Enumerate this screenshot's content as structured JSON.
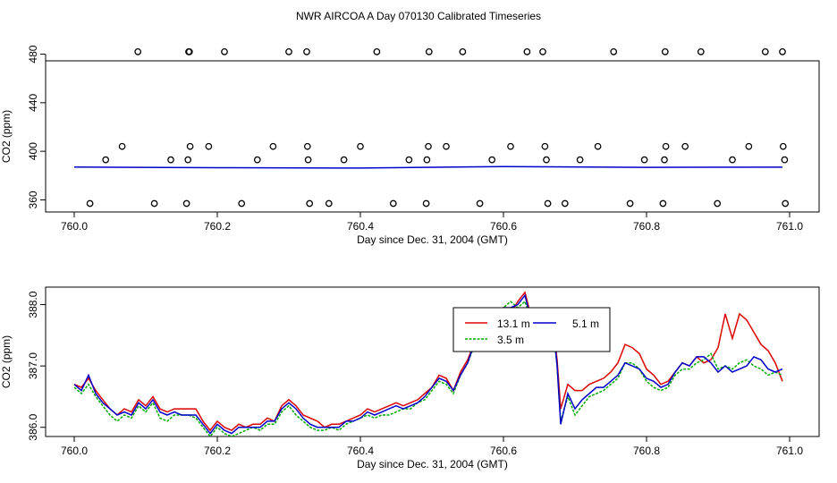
{
  "title": "NWR AIRCOA A  Day 070130  Calibrated Timeseries",
  "chart_data": [
    {
      "type": "scatter",
      "xlabel": "Day since Dec. 31, 2004 (GMT)",
      "ylabel": "CO2 (ppm)",
      "xlim": [
        760.0,
        761.0
      ],
      "ylim": [
        350,
        490
      ],
      "xticks": [
        "760.0",
        "760.2",
        "760.4",
        "760.6",
        "760.8",
        "761.0"
      ],
      "xtick_values": [
        760.0,
        760.2,
        760.4,
        760.6,
        760.8,
        761.0
      ],
      "yticks": [
        "360",
        "400",
        "440",
        "480"
      ],
      "ytick_values": [
        360,
        400,
        440,
        480
      ],
      "grid": false,
      "series": [
        {
          "marker": "open-circle",
          "color": "#000000",
          "x": [
            760.022,
            760.089,
            760.16,
            760.161,
            760.21,
            760.3,
            760.325,
            760.423,
            760.496,
            760.543,
            760.633,
            760.655,
            760.754,
            760.826,
            760.876,
            760.966,
            760.99,
            760.067,
            760.162,
            760.188,
            760.278,
            760.326,
            760.4,
            760.495,
            760.52,
            760.61,
            760.658,
            760.732,
            760.827,
            760.854,
            760.943,
            760.991,
            760.044,
            760.135,
            760.159,
            760.256,
            760.327,
            760.377,
            760.468,
            760.493,
            760.584,
            760.66,
            760.707,
            760.797,
            760.825,
            760.92,
            760.993,
            760.112,
            760.157,
            760.234,
            760.329,
            760.356,
            760.446,
            760.492,
            760.567,
            760.662,
            760.686,
            760.777,
            760.823,
            760.899,
            760.994
          ],
          "y": [
            357,
            482,
            482,
            482,
            482,
            482,
            482,
            482,
            482,
            482,
            482,
            482,
            482,
            482,
            482,
            482,
            482,
            404,
            404,
            404,
            404,
            404,
            404,
            404,
            404,
            404,
            404,
            404,
            404,
            404,
            404,
            404,
            393,
            393,
            393,
            393,
            393,
            393,
            393,
            393,
            393,
            393,
            393,
            393,
            393,
            393,
            393,
            357,
            357,
            357,
            357,
            357,
            357,
            357,
            357,
            357,
            357,
            357,
            357,
            357,
            357
          ]
        },
        {
          "marker": "line",
          "color": "#0000cc",
          "x": [
            760.0,
            760.2,
            760.4,
            760.6,
            760.8,
            760.99
          ],
          "y": [
            387,
            386.5,
            386.2,
            387.4,
            386.8,
            386.9
          ]
        }
      ]
    },
    {
      "type": "line",
      "xlabel": "Day since Dec. 31, 2004 (GMT)",
      "ylabel": "CO2 (ppm)",
      "xlim": [
        760.0,
        761.0
      ],
      "ylim": [
        385.85,
        388.3
      ],
      "xticks": [
        "760.0",
        "760.2",
        "760.4",
        "760.6",
        "760.8",
        "761.0"
      ],
      "xtick_values": [
        760.0,
        760.2,
        760.4,
        760.6,
        760.8,
        761.0
      ],
      "yticks": [
        "386.0",
        "387.0",
        "388.0"
      ],
      "ytick_values": [
        386.0,
        387.0,
        388.0
      ],
      "grid": false,
      "legend": "top-center",
      "series": [
        {
          "name": "13.1 m",
          "label_shown": "13.1 m",
          "color": "#dd0000",
          "x": [
            760.0,
            760.01,
            760.02,
            760.03,
            760.04,
            760.05,
            760.06,
            760.07,
            760.08,
            760.09,
            760.1,
            760.11,
            760.12,
            760.13,
            760.14,
            760.15,
            760.16,
            760.17,
            760.18,
            760.19,
            760.2,
            760.21,
            760.22,
            760.23,
            760.24,
            760.25,
            760.26,
            760.27,
            760.28,
            760.29,
            760.3,
            760.31,
            760.32,
            760.33,
            760.34,
            760.35,
            760.36,
            760.37,
            760.38,
            760.39,
            760.4,
            760.41,
            760.42,
            760.43,
            760.44,
            760.45,
            760.46,
            760.47,
            760.48,
            760.49,
            760.5,
            760.51,
            760.52,
            760.53,
            760.54,
            760.55,
            760.56,
            760.57,
            760.58,
            760.59,
            760.6,
            760.61,
            760.62,
            760.63,
            760.64,
            760.65,
            760.66,
            760.67,
            760.675,
            760.68,
            760.69,
            760.7,
            760.71,
            760.72,
            760.73,
            760.74,
            760.75,
            760.76,
            760.77,
            760.78,
            760.79,
            760.8,
            760.81,
            760.82,
            760.83,
            760.84,
            760.85,
            760.86,
            760.87,
            760.88,
            760.89,
            760.9,
            760.91,
            760.92,
            760.93,
            760.94,
            760.95,
            760.96,
            760.97,
            760.98,
            760.99
          ],
          "y": [
            386.7,
            386.65,
            386.8,
            386.6,
            386.45,
            386.3,
            386.2,
            386.3,
            386.25,
            386.45,
            386.35,
            386.5,
            386.3,
            386.25,
            386.3,
            386.3,
            386.3,
            386.3,
            386.1,
            385.95,
            386.1,
            386.0,
            385.95,
            386.05,
            386.0,
            386.05,
            386.05,
            386.15,
            386.1,
            386.35,
            386.45,
            386.35,
            386.2,
            386.15,
            386.1,
            386.0,
            386.05,
            386.05,
            386.1,
            386.15,
            386.2,
            386.3,
            386.25,
            386.3,
            386.35,
            386.4,
            386.35,
            386.4,
            386.45,
            386.55,
            386.65,
            386.85,
            386.8,
            386.6,
            386.9,
            387.1,
            387.4,
            387.35,
            387.55,
            387.8,
            387.95,
            387.85,
            388.05,
            388.2,
            387.75,
            387.6,
            387.65,
            387.6,
            387.1,
            386.3,
            386.7,
            386.6,
            386.6,
            386.7,
            386.75,
            386.8,
            386.9,
            387.05,
            387.35,
            387.3,
            387.2,
            386.95,
            386.85,
            386.7,
            386.75,
            386.9,
            387.05,
            387.0,
            387.15,
            387.05,
            387.1,
            387.3,
            387.85,
            387.45,
            387.85,
            387.75,
            387.55,
            387.35,
            387.25,
            387.05,
            386.75
          ]
        },
        {
          "name": "3.5 m",
          "label_shown": "3.5 m",
          "color": "#00aa00",
          "x": [
            760.0,
            760.01,
            760.02,
            760.03,
            760.04,
            760.05,
            760.06,
            760.07,
            760.08,
            760.09,
            760.1,
            760.11,
            760.12,
            760.13,
            760.14,
            760.15,
            760.16,
            760.17,
            760.18,
            760.19,
            760.2,
            760.21,
            760.22,
            760.23,
            760.24,
            760.25,
            760.26,
            760.27,
            760.28,
            760.29,
            760.3,
            760.31,
            760.32,
            760.33,
            760.34,
            760.35,
            760.36,
            760.37,
            760.38,
            760.39,
            760.4,
            760.41,
            760.42,
            760.43,
            760.44,
            760.45,
            760.46,
            760.47,
            760.48,
            760.49,
            760.5,
            760.51,
            760.52,
            760.53,
            760.54,
            760.55,
            760.56,
            760.57,
            760.58,
            760.59,
            760.6,
            760.61,
            760.62,
            760.63,
            760.64,
            760.65,
            760.66,
            760.67,
            760.675,
            760.68,
            760.69,
            760.7,
            760.71,
            760.72,
            760.73,
            760.74,
            760.75,
            760.76,
            760.77,
            760.78,
            760.79,
            760.8,
            760.81,
            760.82,
            760.83,
            760.84,
            760.85,
            760.86,
            760.87,
            760.88,
            760.89,
            760.9,
            760.91,
            760.92,
            760.93,
            760.94,
            760.95,
            760.96,
            760.97,
            760.98,
            760.99
          ],
          "y": [
            386.65,
            386.55,
            386.7,
            386.5,
            386.35,
            386.2,
            386.1,
            386.2,
            386.15,
            386.35,
            386.25,
            386.4,
            386.15,
            386.1,
            386.2,
            386.2,
            386.2,
            386.15,
            386.0,
            385.85,
            386.0,
            385.9,
            385.85,
            385.9,
            385.95,
            386.0,
            385.95,
            386.05,
            386.05,
            386.25,
            386.35,
            386.2,
            386.1,
            386.0,
            385.95,
            385.95,
            386.0,
            385.95,
            386.05,
            386.1,
            386.15,
            386.2,
            386.15,
            386.2,
            386.2,
            386.25,
            386.3,
            386.3,
            386.4,
            386.45,
            386.6,
            386.75,
            386.7,
            386.55,
            386.85,
            387.05,
            387.35,
            387.25,
            387.5,
            387.75,
            387.95,
            388.05,
            387.95,
            388.05,
            387.7,
            387.6,
            387.65,
            387.55,
            387.0,
            386.1,
            386.5,
            386.2,
            386.35,
            386.5,
            386.55,
            386.6,
            386.7,
            386.8,
            387.05,
            387.05,
            386.95,
            386.75,
            386.65,
            386.6,
            386.65,
            386.85,
            386.95,
            386.95,
            387.05,
            387.1,
            387.2,
            386.95,
            387.0,
            386.95,
            387.05,
            387.1,
            387.0,
            386.95,
            386.85,
            386.9,
            386.85
          ]
        },
        {
          "name": "5.1 m",
          "label_shown": "5.1 m",
          "color": "#0000cc",
          "x": [
            760.0,
            760.01,
            760.02,
            760.03,
            760.04,
            760.05,
            760.06,
            760.07,
            760.08,
            760.09,
            760.1,
            760.11,
            760.12,
            760.13,
            760.14,
            760.15,
            760.16,
            760.17,
            760.18,
            760.19,
            760.2,
            760.21,
            760.22,
            760.23,
            760.24,
            760.25,
            760.26,
            760.27,
            760.28,
            760.29,
            760.3,
            760.31,
            760.32,
            760.33,
            760.34,
            760.35,
            760.36,
            760.37,
            760.38,
            760.39,
            760.4,
            760.41,
            760.42,
            760.43,
            760.44,
            760.45,
            760.46,
            760.47,
            760.48,
            760.49,
            760.5,
            760.51,
            760.52,
            760.53,
            760.54,
            760.55,
            760.56,
            760.57,
            760.58,
            760.59,
            760.6,
            760.61,
            760.62,
            760.63,
            760.64,
            760.65,
            760.66,
            760.67,
            760.675,
            760.68,
            760.69,
            760.7,
            760.71,
            760.72,
            760.73,
            760.74,
            760.75,
            760.76,
            760.77,
            760.78,
            760.79,
            760.8,
            760.81,
            760.82,
            760.83,
            760.84,
            760.85,
            760.86,
            760.87,
            760.88,
            760.89,
            760.9,
            760.91,
            760.92,
            760.93,
            760.94,
            760.95,
            760.96,
            760.97,
            760.98,
            760.99
          ],
          "y": [
            386.7,
            386.6,
            386.85,
            386.55,
            386.4,
            386.3,
            386.2,
            386.25,
            386.2,
            386.4,
            386.3,
            386.45,
            386.25,
            386.2,
            386.25,
            386.2,
            386.2,
            386.2,
            386.05,
            385.9,
            386.05,
            385.95,
            385.9,
            386.0,
            386.0,
            386.0,
            386.0,
            386.1,
            386.1,
            386.3,
            386.4,
            386.3,
            386.15,
            386.05,
            386.0,
            386.0,
            386.0,
            386.0,
            386.1,
            386.1,
            386.15,
            386.25,
            386.2,
            386.25,
            386.3,
            386.35,
            386.3,
            386.35,
            386.4,
            386.5,
            386.65,
            386.8,
            386.75,
            386.6,
            386.85,
            387.05,
            387.4,
            387.3,
            387.5,
            387.75,
            387.95,
            387.95,
            388.0,
            388.15,
            387.7,
            387.6,
            387.65,
            387.6,
            387.0,
            386.05,
            386.55,
            386.3,
            386.45,
            386.55,
            386.65,
            386.65,
            386.75,
            386.85,
            387.05,
            387.0,
            386.95,
            386.8,
            386.75,
            386.65,
            386.7,
            386.9,
            387.05,
            387.0,
            387.15,
            387.15,
            387.05,
            386.9,
            387.0,
            386.9,
            386.95,
            387.0,
            387.15,
            387.1,
            386.95,
            386.9,
            386.95
          ]
        }
      ]
    }
  ]
}
